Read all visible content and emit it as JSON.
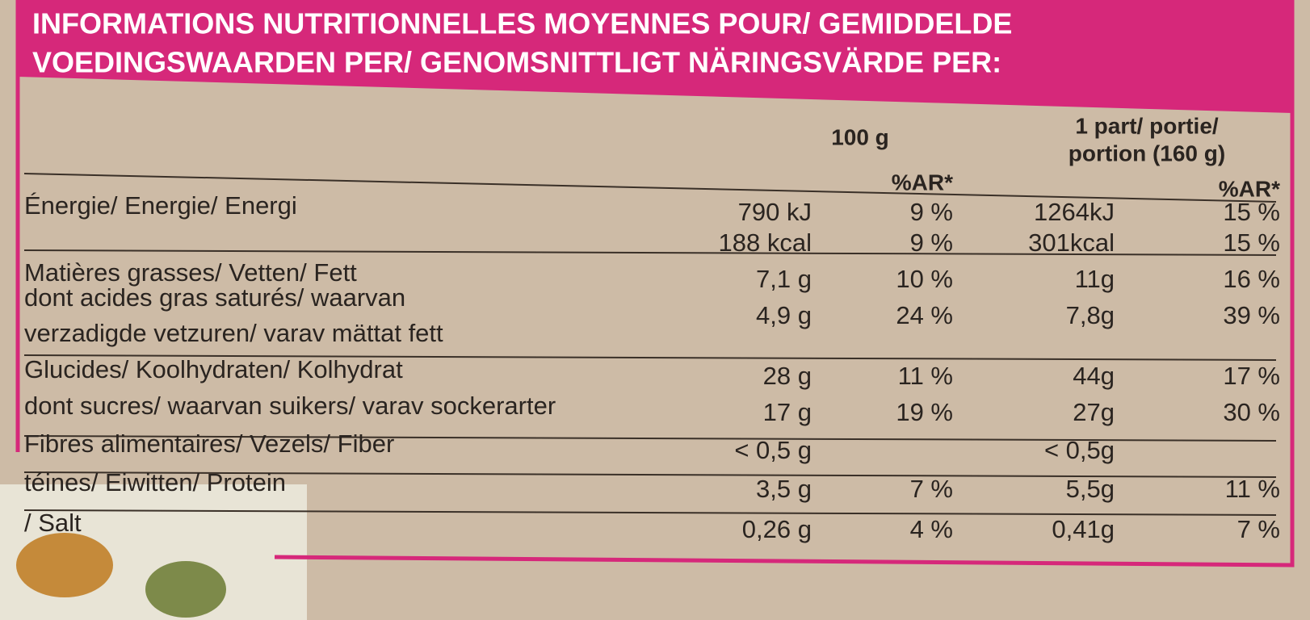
{
  "header": {
    "lines": [
      "INFORMATIONS NUTRITIONNELLES MOYENNES POUR/ GEMIDDELDE",
      "VOEDINGSWAARDEN PER/ GENOMSNITTLIGT NÄRINGSVÄRDE PER:"
    ]
  },
  "columns": {
    "per100g": "100 g",
    "ar100g": "%AR*",
    "portion": [
      "1 part/ portie/",
      "portion (160 g)"
    ],
    "arPortion": "%AR*"
  },
  "rows": [
    {
      "label": [
        "Énergie/ Energie/ Energi"
      ],
      "per100g": "790 kJ",
      "ar100g": "9 %",
      "portion": "1264kJ",
      "arPortion": "15 %"
    },
    {
      "per100g": "188 kcal",
      "ar100g": "9 %",
      "portion": "301kcal",
      "arPortion": "15 %"
    },
    {
      "label": [
        "Matières grasses/ Vetten/ Fett"
      ],
      "per100g": "7,1 g",
      "ar100g": "10 %",
      "portion": "11g",
      "arPortion": "16 %"
    },
    {
      "label": [
        "dont acides gras saturés/ waarvan",
        "verzadigde vetzuren/ varav mättat fett"
      ],
      "per100g": "4,9 g",
      "ar100g": "24 %",
      "portion": "7,8g",
      "arPortion": "39 %"
    },
    {
      "label": [
        "Glucides/ Koolhydraten/ Kolhydrat"
      ],
      "per100g": "28 g",
      "ar100g": "11 %",
      "portion": "44g",
      "arPortion": "17 %"
    },
    {
      "label": [
        "dont sucres/ waarvan suikers/ varav sockerarter"
      ],
      "per100g": "17 g",
      "ar100g": "19 %",
      "portion": "27g",
      "arPortion": "30 %"
    },
    {
      "label": [
        "Fibres alimentaires/ Vezels/ Fiber"
      ],
      "per100g": "< 0,5 g",
      "portion": "< 0,5g"
    },
    {
      "label": [
        "téines/ Eiwitten/ Protein"
      ],
      "per100g": "3,5 g",
      "ar100g": "7 %",
      "portion": "5,5g",
      "arPortion": "11 %"
    },
    {
      "label": [
        "/ Salt"
      ],
      "per100g": "0,26 g",
      "ar100g": "4 %",
      "portion": "0,41g",
      "arPortion": "7 %"
    }
  ]
}
